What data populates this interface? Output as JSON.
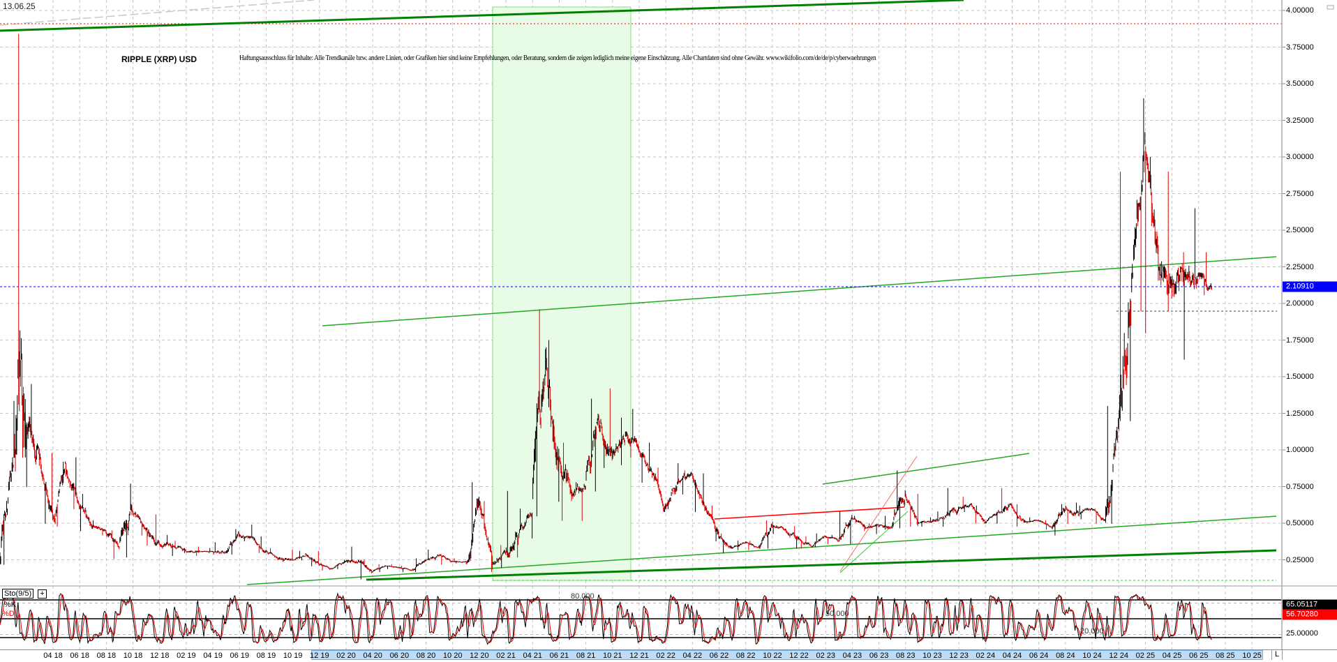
{
  "header": {
    "date": "13.06.25",
    "title": "RIPPLE (XRP) USD",
    "disclaimer": "Haftungsausschluss für Inhalte: Alle Trendkanäle bzw. andere Linien, oder Grafiken hier sind keine Empfehlungen, oder Beratung, sondern die zeigen lediglich meine eigene Einschätzung. Alle Chartdaten sind ohne Gewähr.  www.wikifolio.com/de/de/p/cyberwaehrungen"
  },
  "colors": {
    "up_bar": "#000000",
    "down_bar": "#e00000",
    "trend_green": "#008000",
    "light_green": "#33cc33",
    "current_price": "#0000ff",
    "resistance_red": "#ff0000",
    "highlight_zone": "#e8fbe6",
    "stoch_k": "#000000",
    "stoch_d": "#e00000"
  },
  "chart_data": [
    {
      "type": "candlestick",
      "title": "RIPPLE (XRP) USD",
      "ylim": [
        0.1,
        4.0
      ],
      "y_ticks": [
        "4.00000",
        "3.75000",
        "3.50000",
        "3.25000",
        "3.00000",
        "2.75000",
        "2.50000",
        "2.25000",
        "2.00000",
        "1.75000",
        "1.50000",
        "1.25000",
        "1.00000",
        "0.75000",
        "0.50000",
        "0.25000"
      ],
      "current_price": "2.10910",
      "grid": true,
      "series": [
        {
          "d": "2017-12",
          "h": 0.95,
          "l": 0.22,
          "c": 0.9
        },
        {
          "d": "2018-01",
          "h": 3.84,
          "l": 0.95,
          "c": 1.15
        },
        {
          "d": "2018-02",
          "h": 1.45,
          "l": 0.75,
          "c": 0.95
        },
        {
          "d": "2018-03",
          "h": 0.98,
          "l": 0.5,
          "c": 0.55
        },
        {
          "d": "2018-04",
          "h": 0.92,
          "l": 0.48,
          "c": 0.85
        },
        {
          "d": "2018-05",
          "h": 0.95,
          "l": 0.6,
          "c": 0.62
        },
        {
          "d": "2018-06",
          "h": 0.7,
          "l": 0.45,
          "c": 0.48
        },
        {
          "d": "2018-07",
          "h": 0.52,
          "l": 0.42,
          "c": 0.44
        },
        {
          "d": "2018-08",
          "h": 0.45,
          "l": 0.26,
          "c": 0.33
        },
        {
          "d": "2018-09",
          "h": 0.77,
          "l": 0.27,
          "c": 0.58
        },
        {
          "d": "2018-10",
          "h": 0.58,
          "l": 0.42,
          "c": 0.46
        },
        {
          "d": "2018-11",
          "h": 0.56,
          "l": 0.35,
          "c": 0.36
        },
        {
          "d": "2018-12",
          "h": 0.42,
          "l": 0.28,
          "c": 0.35
        },
        {
          "d": "2019-01",
          "h": 0.38,
          "l": 0.3,
          "c": 0.31
        },
        {
          "d": "2019-02",
          "h": 0.34,
          "l": 0.28,
          "c": 0.31
        },
        {
          "d": "2019-03",
          "h": 0.33,
          "l": 0.3,
          "c": 0.31
        },
        {
          "d": "2019-04",
          "h": 0.37,
          "l": 0.29,
          "c": 0.3
        },
        {
          "d": "2019-05",
          "h": 0.46,
          "l": 0.29,
          "c": 0.42
        },
        {
          "d": "2019-06",
          "h": 0.49,
          "l": 0.38,
          "c": 0.4
        },
        {
          "d": "2019-07",
          "h": 0.41,
          "l": 0.3,
          "c": 0.31
        },
        {
          "d": "2019-08",
          "h": 0.33,
          "l": 0.25,
          "c": 0.26
        },
        {
          "d": "2019-09",
          "h": 0.32,
          "l": 0.24,
          "c": 0.25
        },
        {
          "d": "2019-10",
          "h": 0.31,
          "l": 0.25,
          "c": 0.29
        },
        {
          "d": "2019-11",
          "h": 0.31,
          "l": 0.21,
          "c": 0.22
        },
        {
          "d": "2019-12",
          "h": 0.23,
          "l": 0.18,
          "c": 0.19
        },
        {
          "d": "2020-01",
          "h": 0.25,
          "l": 0.19,
          "c": 0.24
        },
        {
          "d": "2020-02",
          "h": 0.34,
          "l": 0.23,
          "c": 0.24
        },
        {
          "d": "2020-03",
          "h": 0.25,
          "l": 0.12,
          "c": 0.17
        },
        {
          "d": "2020-04",
          "h": 0.22,
          "l": 0.17,
          "c": 0.21
        },
        {
          "d": "2020-05",
          "h": 0.22,
          "l": 0.19,
          "c": 0.2
        },
        {
          "d": "2020-06",
          "h": 0.21,
          "l": 0.17,
          "c": 0.18
        },
        {
          "d": "2020-07",
          "h": 0.26,
          "l": 0.17,
          "c": 0.25
        },
        {
          "d": "2020-08",
          "h": 0.32,
          "l": 0.25,
          "c": 0.28
        },
        {
          "d": "2020-09",
          "h": 0.29,
          "l": 0.22,
          "c": 0.24
        },
        {
          "d": "2020-10",
          "h": 0.26,
          "l": 0.23,
          "c": 0.24
        },
        {
          "d": "2020-11",
          "h": 0.78,
          "l": 0.24,
          "c": 0.65
        },
        {
          "d": "2020-12",
          "h": 0.65,
          "l": 0.17,
          "c": 0.22
        },
        {
          "d": "2021-01",
          "h": 0.35,
          "l": 0.2,
          "c": 0.29
        },
        {
          "d": "2021-02",
          "h": 0.72,
          "l": 0.27,
          "c": 0.43
        },
        {
          "d": "2021-03",
          "h": 0.6,
          "l": 0.4,
          "c": 0.57
        },
        {
          "d": "2021-04",
          "h": 1.96,
          "l": 0.55,
          "c": 1.6
        },
        {
          "d": "2021-05",
          "h": 1.75,
          "l": 0.65,
          "c": 0.95
        },
        {
          "d": "2021-06",
          "h": 1.05,
          "l": 0.52,
          "c": 0.7
        },
        {
          "d": "2021-07",
          "h": 0.78,
          "l": 0.52,
          "c": 0.75
        },
        {
          "d": "2021-08",
          "h": 1.35,
          "l": 0.72,
          "c": 1.2
        },
        {
          "d": "2021-09",
          "h": 1.42,
          "l": 0.88,
          "c": 0.95
        },
        {
          "d": "2021-10",
          "h": 1.22,
          "l": 0.9,
          "c": 1.1
        },
        {
          "d": "2021-11",
          "h": 1.28,
          "l": 0.95,
          "c": 1.0
        },
        {
          "d": "2021-12",
          "h": 1.05,
          "l": 0.78,
          "c": 0.83
        },
        {
          "d": "2022-01",
          "h": 0.88,
          "l": 0.58,
          "c": 0.62
        },
        {
          "d": "2022-02",
          "h": 0.91,
          "l": 0.6,
          "c": 0.78
        },
        {
          "d": "2022-03",
          "h": 0.86,
          "l": 0.7,
          "c": 0.83
        },
        {
          "d": "2022-04",
          "h": 0.84,
          "l": 0.58,
          "c": 0.6
        },
        {
          "d": "2022-05",
          "h": 0.62,
          "l": 0.38,
          "c": 0.4
        },
        {
          "d": "2022-06",
          "h": 0.43,
          "l": 0.3,
          "c": 0.33
        },
        {
          "d": "2022-07",
          "h": 0.38,
          "l": 0.32,
          "c": 0.37
        },
        {
          "d": "2022-08",
          "h": 0.38,
          "l": 0.32,
          "c": 0.34
        },
        {
          "d": "2022-09",
          "h": 0.52,
          "l": 0.33,
          "c": 0.48
        },
        {
          "d": "2022-10",
          "h": 0.51,
          "l": 0.43,
          "c": 0.46
        },
        {
          "d": "2022-11",
          "h": 0.48,
          "l": 0.33,
          "c": 0.4
        },
        {
          "d": "2022-12",
          "h": 0.41,
          "l": 0.33,
          "c": 0.34
        },
        {
          "d": "2023-01",
          "h": 0.43,
          "l": 0.34,
          "c": 0.41
        },
        {
          "d": "2023-02",
          "h": 0.42,
          "l": 0.36,
          "c": 0.38
        },
        {
          "d": "2023-03",
          "h": 0.58,
          "l": 0.36,
          "c": 0.54
        },
        {
          "d": "2023-04",
          "h": 0.55,
          "l": 0.45,
          "c": 0.47
        },
        {
          "d": "2023-05",
          "h": 0.5,
          "l": 0.43,
          "c": 0.48
        },
        {
          "d": "2023-06",
          "h": 0.55,
          "l": 0.46,
          "c": 0.47
        },
        {
          "d": "2023-07",
          "h": 0.86,
          "l": 0.47,
          "c": 0.7
        },
        {
          "d": "2023-08",
          "h": 0.7,
          "l": 0.48,
          "c": 0.5
        },
        {
          "d": "2023-09",
          "h": 0.54,
          "l": 0.48,
          "c": 0.51
        },
        {
          "d": "2023-10",
          "h": 0.58,
          "l": 0.48,
          "c": 0.55
        },
        {
          "d": "2023-11",
          "h": 0.74,
          "l": 0.55,
          "c": 0.6
        },
        {
          "d": "2023-12",
          "h": 0.68,
          "l": 0.58,
          "c": 0.62
        },
        {
          "d": "2024-01",
          "h": 0.62,
          "l": 0.5,
          "c": 0.5
        },
        {
          "d": "2024-02",
          "h": 0.59,
          "l": 0.5,
          "c": 0.58
        },
        {
          "d": "2024-03",
          "h": 0.74,
          "l": 0.58,
          "c": 0.62
        },
        {
          "d": "2024-04",
          "h": 0.63,
          "l": 0.48,
          "c": 0.51
        },
        {
          "d": "2024-05",
          "h": 0.54,
          "l": 0.5,
          "c": 0.52
        },
        {
          "d": "2024-06",
          "h": 0.52,
          "l": 0.46,
          "c": 0.47
        },
        {
          "d": "2024-07",
          "h": 0.63,
          "l": 0.42,
          "c": 0.6
        },
        {
          "d": "2024-08",
          "h": 0.64,
          "l": 0.5,
          "c": 0.56
        },
        {
          "d": "2024-09",
          "h": 0.62,
          "l": 0.53,
          "c": 0.6
        },
        {
          "d": "2024-10",
          "h": 0.6,
          "l": 0.5,
          "c": 0.52
        },
        {
          "d": "2024-11",
          "h": 1.3,
          "l": 0.5,
          "c": 1.2
        },
        {
          "d": "2024-12",
          "h": 2.9,
          "l": 1.2,
          "c": 2.1
        },
        {
          "d": "2025-01",
          "h": 3.4,
          "l": 1.95,
          "c": 3.1
        },
        {
          "d": "2025-02",
          "h": 3.0,
          "l": 1.8,
          "c": 2.2
        },
        {
          "d": "2025-03",
          "h": 2.9,
          "l": 1.95,
          "c": 2.1
        },
        {
          "d": "2025-04",
          "h": 2.35,
          "l": 1.62,
          "c": 2.2
        },
        {
          "d": "2025-05",
          "h": 2.65,
          "l": 2.1,
          "c": 2.2
        },
        {
          "d": "2025-06",
          "h": 2.35,
          "l": 2.06,
          "c": 2.109
        }
      ]
    },
    {
      "type": "line",
      "title": "Sto(9/5)",
      "ylim": [
        0,
        100
      ],
      "levels": [
        "80.000",
        "50.000",
        "20.000"
      ],
      "y_tick": "25.00000",
      "series": [
        {
          "name": "%K",
          "last": "65.05117"
        },
        {
          "name": "%D",
          "last": "56.70280"
        }
      ]
    }
  ],
  "x_axis": {
    "ticks": [
      "04 18",
      "06 18",
      "08 18",
      "10 18",
      "12 18",
      "02 19",
      "04 19",
      "06 19",
      "08 19",
      "10 19",
      "12 19",
      "02 20",
      "04 20",
      "06 20",
      "08 20",
      "10 20",
      "12 20",
      "02 21",
      "04 21",
      "06 21",
      "08 21",
      "10 21",
      "12 21",
      "02 22",
      "04 22",
      "06 22",
      "08 22",
      "10 22",
      "12 22",
      "02 23",
      "04 23",
      "06 23",
      "08 23",
      "10 23",
      "12 23",
      "02 24",
      "04 24",
      "06 24",
      "08 24",
      "10 24",
      "12 24",
      "02 25",
      "04 25",
      "06 25",
      "08 25",
      "10 25"
    ],
    "end_button": "L"
  }
}
